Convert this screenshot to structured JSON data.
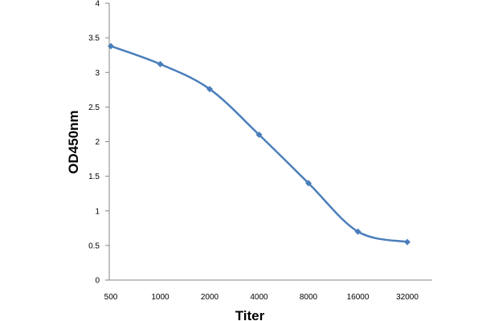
{
  "chart_data": {
    "type": "line",
    "xlabel": "Titer",
    "ylabel": "OD450nm",
    "categories": [
      "500",
      "1000",
      "2000",
      "4000",
      "8000",
      "16000",
      "32000"
    ],
    "series": [
      {
        "values": [
          3.38,
          3.12,
          2.76,
          2.1,
          1.4,
          0.7,
          0.55
        ]
      }
    ],
    "ylim": [
      0,
      4
    ],
    "yticks": [
      "0",
      "0.5",
      "1",
      "1.5",
      "2",
      "2.5",
      "3",
      "3.5",
      "4"
    ],
    "grid": false,
    "line_color": "#4a7ebb",
    "marker": "diamond",
    "smooth": true
  }
}
